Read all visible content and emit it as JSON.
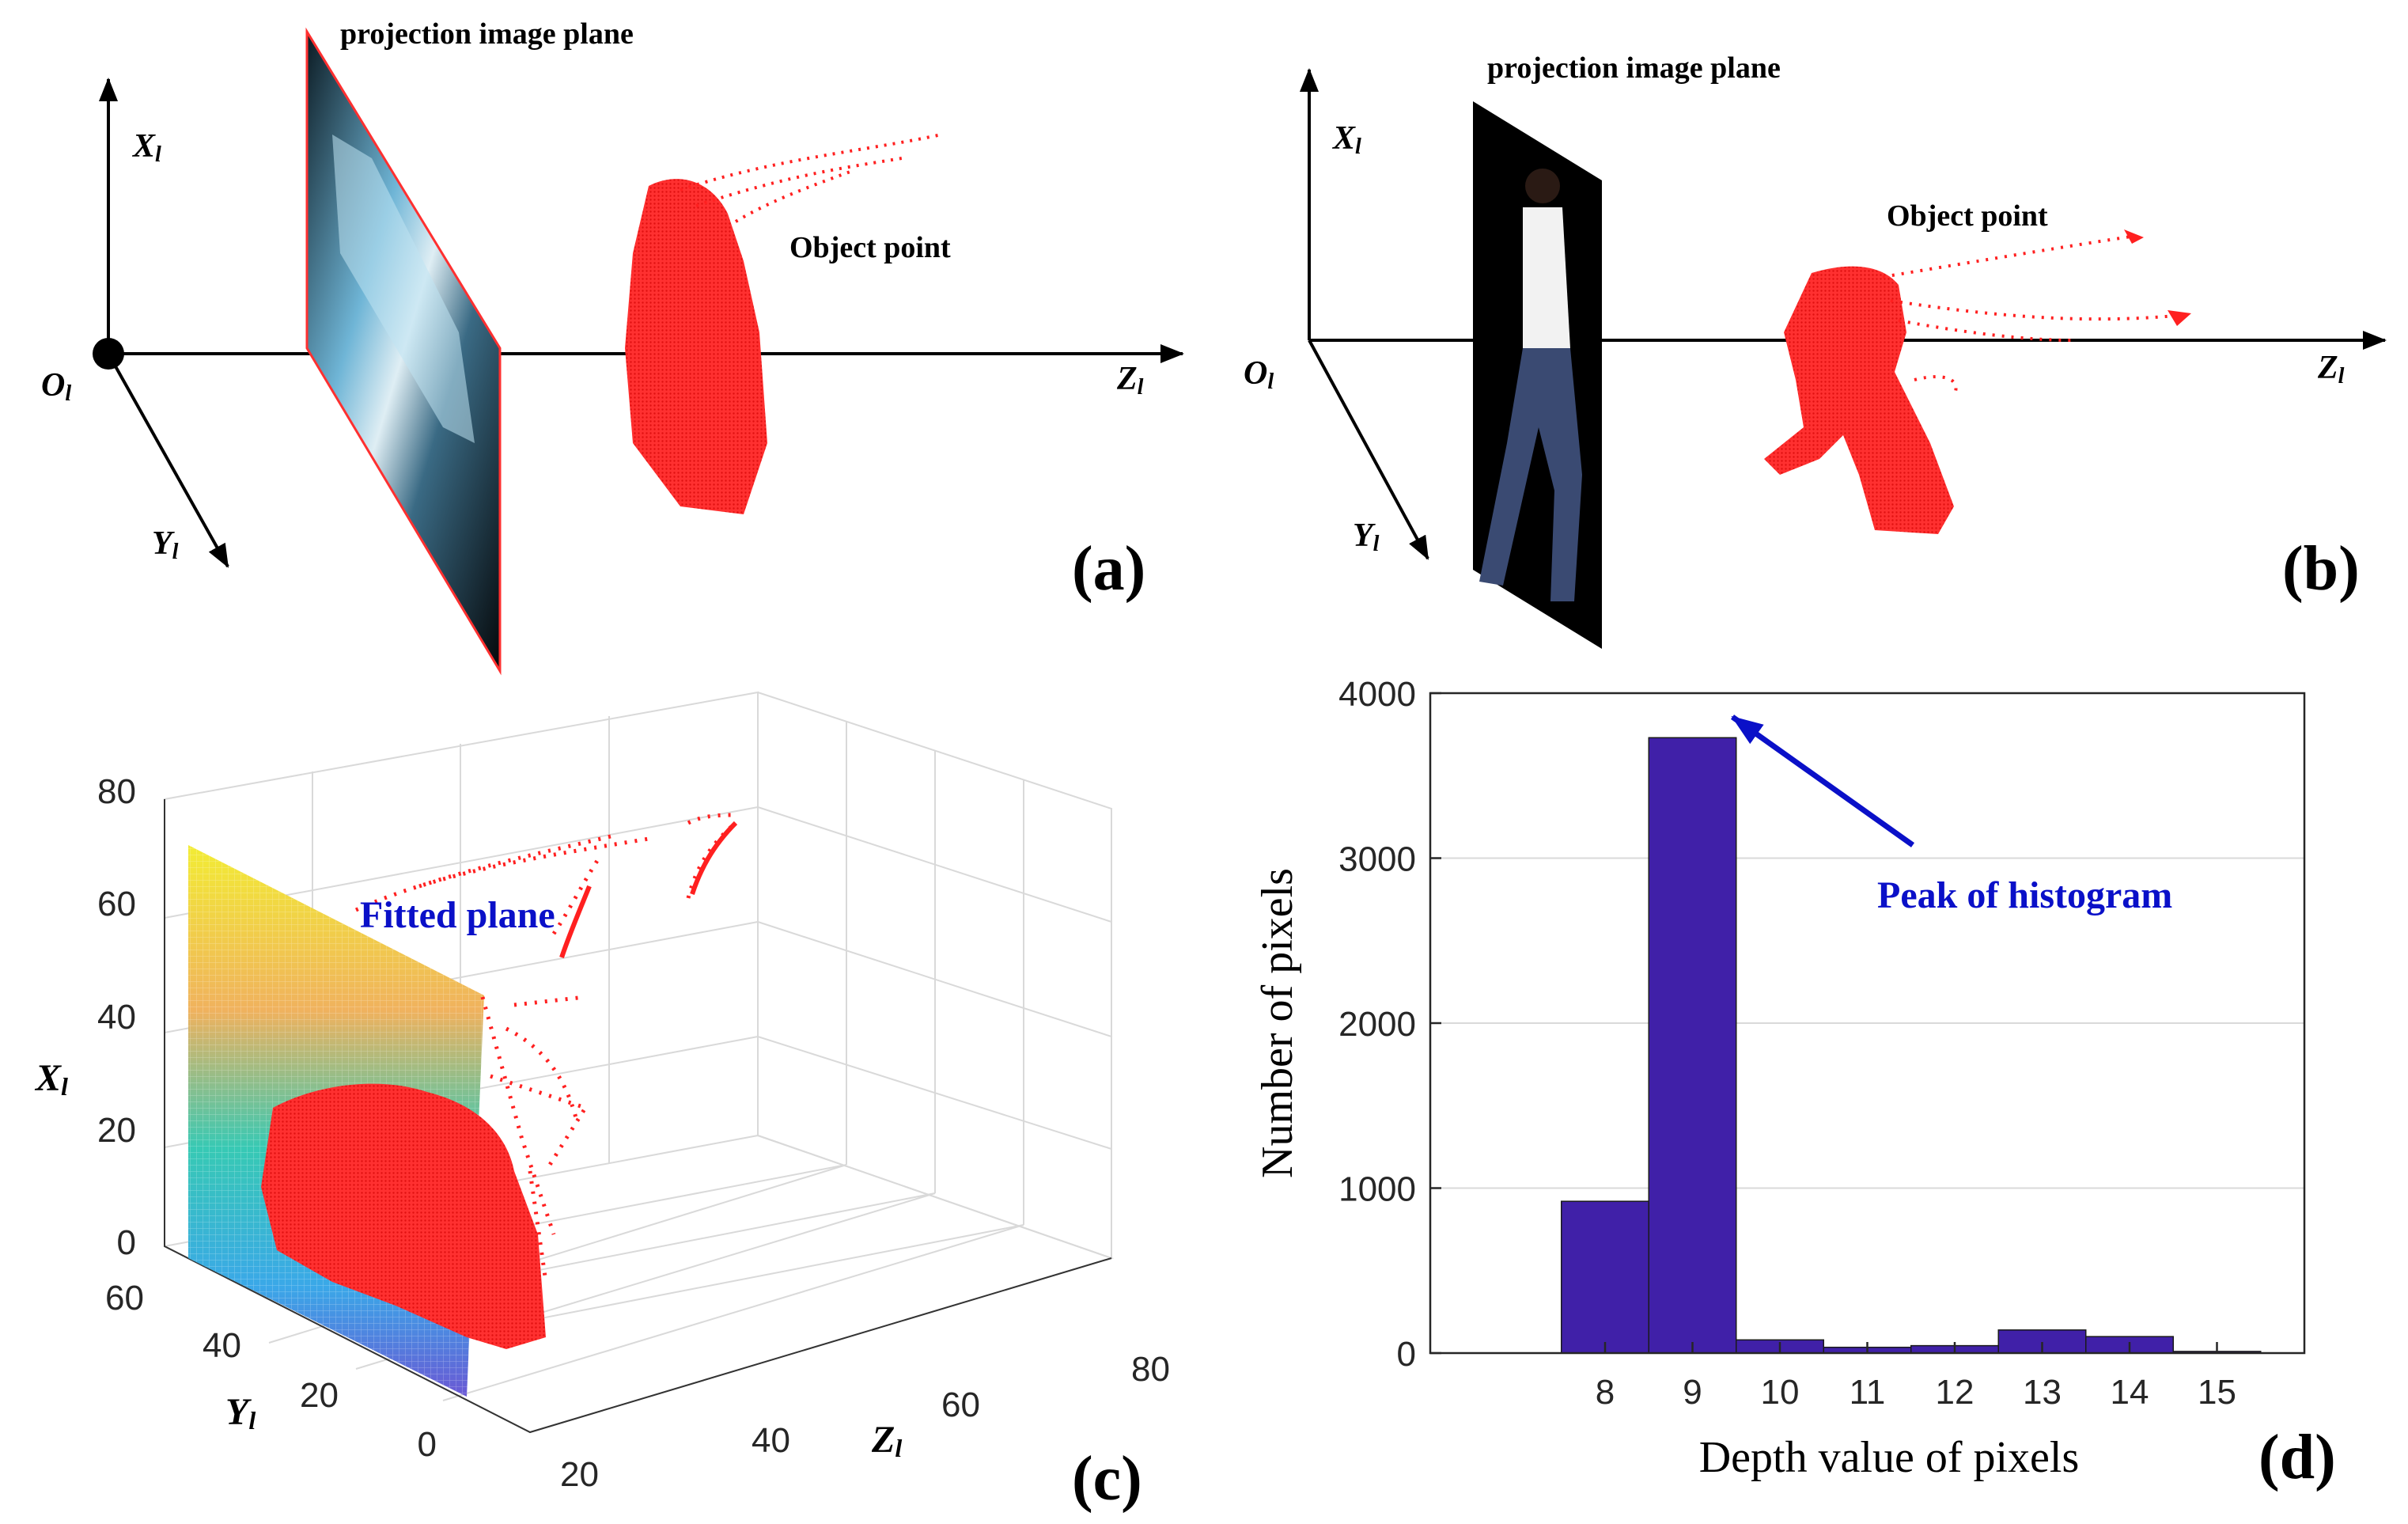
{
  "panel_a": {
    "plane_label": "projection image plane",
    "object_label": "Object point",
    "axis_x": "X",
    "axis_y": "Y",
    "axis_z": "Z",
    "axis_sub": "l",
    "origin": "O",
    "panel_label": "(a)"
  },
  "panel_b": {
    "plane_label": "projection image plane",
    "object_label": "Object point",
    "axis_x": "X",
    "axis_y": "Y",
    "axis_z": "Z",
    "axis_sub": "l",
    "origin": "O",
    "panel_label": "(b)"
  },
  "panel_c": {
    "fitted_label": "Fitted plane",
    "axis_x": "X",
    "axis_y": "Y",
    "axis_z": "Z",
    "axis_sub": "l",
    "x_ticks": [
      "0",
      "20",
      "40",
      "60",
      "80"
    ],
    "y_ticks": [
      "0",
      "20",
      "40",
      "60"
    ],
    "z_ticks": [
      "20",
      "40",
      "60",
      "80"
    ],
    "panel_label": "(c)"
  },
  "panel_d": {
    "annotation": "Peak of histogram",
    "panel_label": "(d)"
  },
  "colors": {
    "points": "#ff2020",
    "bars": "#4020a8",
    "annotation": "#0a10c8",
    "axis": "#000000",
    "grid": "#d9d9d9"
  },
  "chart_data": {
    "type": "bar",
    "categories": [
      "8",
      "9",
      "10",
      "11",
      "12",
      "13",
      "14",
      "15"
    ],
    "values": [
      920,
      3730,
      80,
      35,
      45,
      140,
      100,
      10
    ],
    "title": "",
    "xlabel": "Depth value of pixels",
    "ylabel": "Number of pixels",
    "ylim": [
      0,
      4000
    ],
    "yticks": [
      "0",
      "1000",
      "2000",
      "3000",
      "4000"
    ],
    "peak_category": "9"
  }
}
